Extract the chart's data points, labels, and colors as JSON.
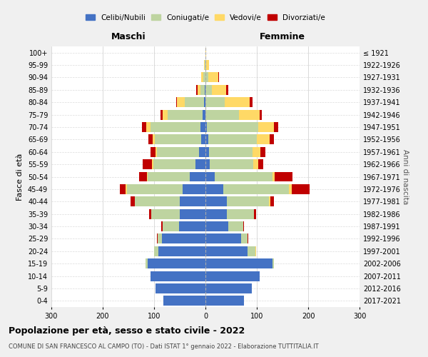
{
  "age_groups": [
    "0-4",
    "5-9",
    "10-14",
    "15-19",
    "20-24",
    "25-29",
    "30-34",
    "35-39",
    "40-44",
    "45-49",
    "50-54",
    "55-59",
    "60-64",
    "65-69",
    "70-74",
    "75-79",
    "80-84",
    "85-89",
    "90-94",
    "95-99",
    "100+"
  ],
  "birth_years": [
    "2017-2021",
    "2012-2016",
    "2007-2011",
    "2002-2006",
    "1997-2001",
    "1992-1996",
    "1987-1991",
    "1982-1986",
    "1977-1981",
    "1972-1976",
    "1967-1971",
    "1962-1966",
    "1957-1961",
    "1952-1956",
    "1947-1951",
    "1942-1946",
    "1937-1941",
    "1932-1936",
    "1927-1931",
    "1922-1926",
    "≤ 1921"
  ],
  "males": {
    "celibi": [
      82,
      97,
      107,
      113,
      92,
      85,
      52,
      50,
      50,
      45,
      30,
      20,
      12,
      8,
      10,
      5,
      3,
      1,
      0,
      0,
      0
    ],
    "coniugati": [
      0,
      0,
      0,
      3,
      8,
      8,
      32,
      55,
      88,
      108,
      83,
      82,
      83,
      90,
      97,
      68,
      37,
      9,
      4,
      1,
      0
    ],
    "vedovi": [
      0,
      0,
      0,
      0,
      0,
      0,
      0,
      0,
      0,
      2,
      1,
      2,
      2,
      5,
      8,
      10,
      15,
      5,
      4,
      2,
      0
    ],
    "divorziati": [
      0,
      0,
      0,
      0,
      0,
      2,
      2,
      5,
      8,
      12,
      15,
      18,
      10,
      8,
      8,
      5,
      2,
      3,
      0,
      0,
      0
    ]
  },
  "females": {
    "celibi": [
      75,
      90,
      105,
      130,
      82,
      70,
      45,
      42,
      42,
      35,
      18,
      8,
      7,
      5,
      3,
      0,
      0,
      0,
      0,
      0,
      0
    ],
    "coniugati": [
      0,
      0,
      0,
      3,
      15,
      12,
      28,
      52,
      82,
      128,
      112,
      85,
      85,
      95,
      100,
      65,
      38,
      12,
      5,
      2,
      0
    ],
    "vedovi": [
      0,
      0,
      0,
      0,
      2,
      0,
      0,
      0,
      2,
      5,
      5,
      10,
      15,
      25,
      30,
      40,
      48,
      28,
      20,
      5,
      2
    ],
    "divorziati": [
      0,
      0,
      0,
      0,
      0,
      2,
      2,
      5,
      8,
      35,
      35,
      10,
      10,
      8,
      8,
      5,
      5,
      5,
      2,
      0,
      0
    ]
  },
  "colors": {
    "celibi": "#4472C4",
    "coniugati": "#BED4A0",
    "vedovi": "#FFD966",
    "divorziati": "#C00000"
  },
  "xlim": 300,
  "title": "Popolazione per età, sesso e stato civile - 2022",
  "subtitle": "COMUNE DI SAN FRANCESCO AL CAMPO (TO) - Dati ISTAT 1° gennaio 2022 - Elaborazione TUTTITALIA.IT",
  "ylabel_left": "Fasce di età",
  "ylabel_right": "Anni di nascita",
  "xlabel_left": "Maschi",
  "xlabel_right": "Femmine",
  "legend_labels": [
    "Celibi/Nubili",
    "Coniugati/e",
    "Vedovi/e",
    "Divorziati/e"
  ],
  "bg_color": "#f0f0f0",
  "plot_bg": "#ffffff"
}
